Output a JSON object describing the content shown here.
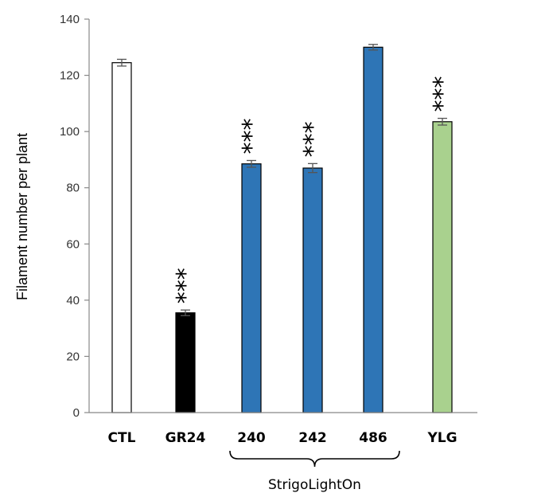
{
  "chart_data": {
    "type": "bar",
    "ylabel": "Filament number per plant",
    "xlabel": "",
    "ylim": [
      0,
      140
    ],
    "yticks": [
      0,
      20,
      40,
      60,
      80,
      100,
      120,
      140
    ],
    "grid": false,
    "categories": [
      "CTL",
      "GR24",
      "240",
      "242",
      "486",
      "YLG"
    ],
    "values": [
      124.5,
      35.5,
      88.5,
      87.0,
      130.0,
      103.5
    ],
    "errors": [
      1.2,
      1.0,
      1.2,
      1.6,
      1.0,
      1.2
    ],
    "colors": [
      "#ffffff",
      "#000000",
      "#2e75b6",
      "#2e75b6",
      "#2e75b6",
      "#a9d18e"
    ],
    "significance": [
      "",
      "***",
      "***",
      "***",
      "",
      "***"
    ],
    "group": {
      "label": "StrigoLightOn",
      "members": [
        "240",
        "242",
        "486"
      ]
    }
  }
}
